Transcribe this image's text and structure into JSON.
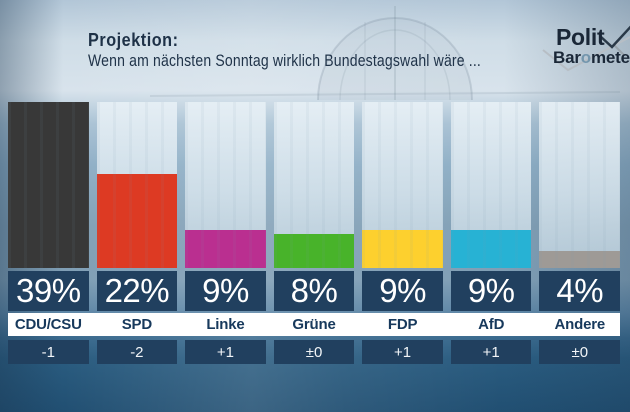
{
  "header": {
    "title": "Projektion:",
    "subtitle": "Wenn am nächsten Sonntag wirklich Bundestagswahl wäre ...",
    "logo": {
      "line1": "Polit",
      "line2_pre": "Bar",
      "line2_o": "o",
      "line2_post": "meter"
    }
  },
  "chart_data": {
    "type": "bar",
    "title": "Projektion: Wenn am nächsten Sonntag wirklich Bundestagswahl wäre ...",
    "categories": [
      "CDU/CSU",
      "SPD",
      "Linke",
      "Grüne",
      "FDP",
      "AfD",
      "Andere"
    ],
    "values": [
      39,
      22,
      9,
      8,
      9,
      9,
      4
    ],
    "value_labels": [
      "39%",
      "22%",
      "9%",
      "8%",
      "9%",
      "9%",
      "4%"
    ],
    "changes": [
      "-1",
      "-2",
      "+1",
      "±0",
      "+1",
      "+1",
      "±0"
    ],
    "bar_colors": [
      "#383838",
      "#dd3a23",
      "#ba2f90",
      "#48b32a",
      "#fdd02e",
      "#27b2d4",
      "#9e9a96"
    ],
    "ylim": [
      0,
      39
    ],
    "xlabel": "",
    "ylabel": "",
    "legend": "none",
    "grid": false
  },
  "colors": {
    "value_box": "#21405f",
    "change_box": "#21405f",
    "label_band": "#ffffff",
    "label_text": "#17395c",
    "value_text": "#ffffff",
    "background_bottom": "#275a7d"
  }
}
